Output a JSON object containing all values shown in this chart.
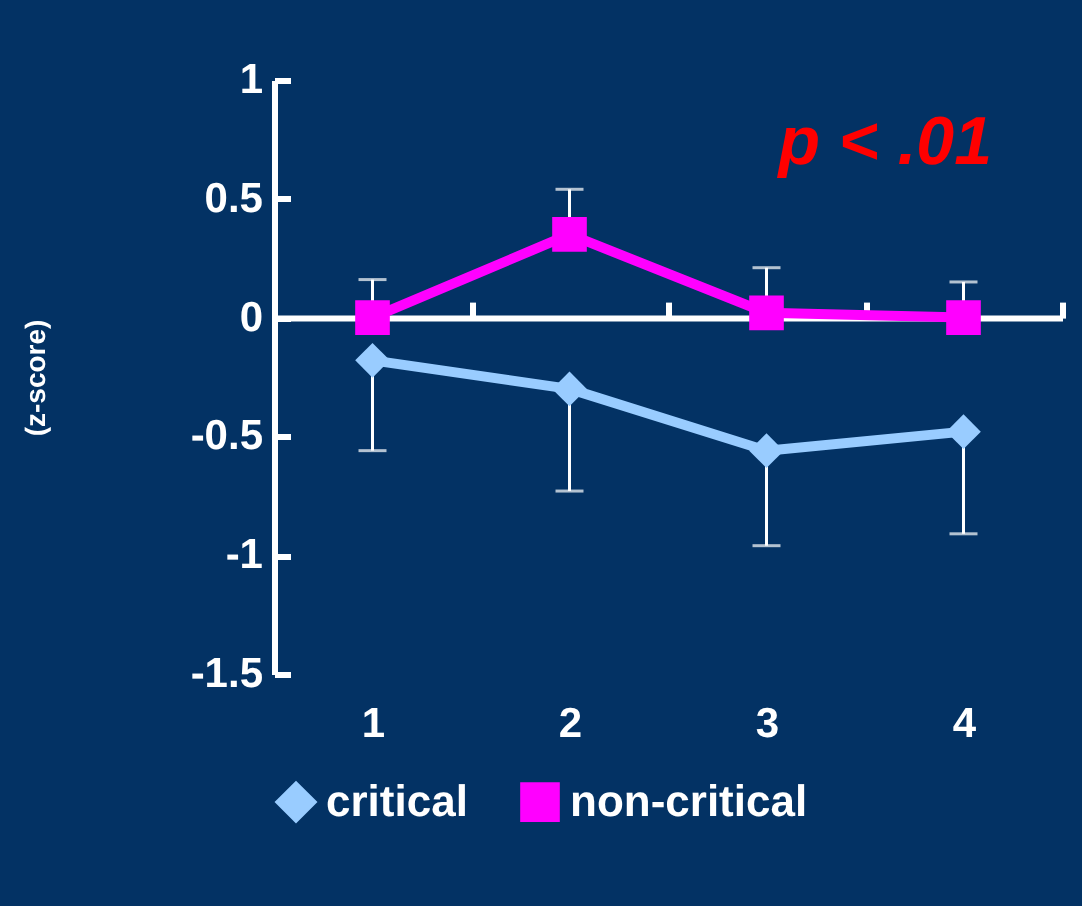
{
  "chart_data": {
    "type": "line",
    "ylabel": "(z-score)",
    "categories": [
      "1",
      "2",
      "3",
      "4"
    ],
    "series": [
      {
        "name": "critical",
        "color": "#99ccff",
        "marker": "diamond",
        "values": [
          -0.18,
          -0.3,
          -0.56,
          -0.48
        ],
        "errors": [
          [
            -0.56,
            -0.18
          ],
          [
            -0.73,
            -0.3
          ],
          [
            -0.96,
            -0.56
          ],
          [
            -0.91,
            -0.48
          ]
        ]
      },
      {
        "name": "non-critical",
        "color": "#ff00ff",
        "marker": "square",
        "values": [
          0,
          0.35,
          0.02,
          0
        ],
        "errors": [
          [
            0,
            0.16
          ],
          [
            0.35,
            0.54
          ],
          [
            0.02,
            0.21
          ],
          [
            0,
            0.15
          ]
        ]
      }
    ],
    "ylim": [
      -1.5,
      1
    ],
    "yticks": [
      -1.5,
      -1,
      -0.5,
      0,
      0.5,
      1
    ],
    "legend": "bottom",
    "annotations": [
      "p < .01"
    ]
  }
}
